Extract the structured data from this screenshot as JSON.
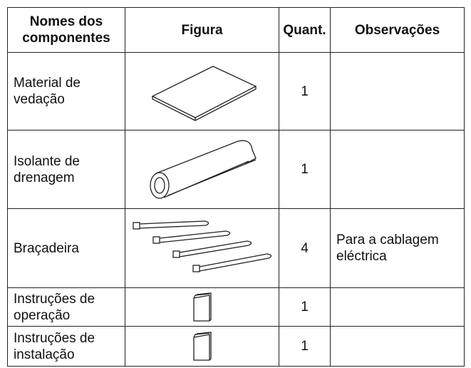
{
  "table": {
    "header": [
      "Nomes dos componentes",
      "Figura",
      "Quant.",
      "Observações"
    ],
    "rows": [
      {
        "name": "Material de vedação",
        "quantity": 1
      },
      {
        "name": "Isolante de drenagem",
        "quantity": 1
      },
      {
        "name": "Braçadeira",
        "quantity": 4,
        "note": "Para a cablagem eléctrica"
      },
      {
        "name": "Instruções de operação",
        "quantity": 1
      },
      {
        "name": "Instruções de instalação",
        "quantity": 1
      }
    ]
  }
}
